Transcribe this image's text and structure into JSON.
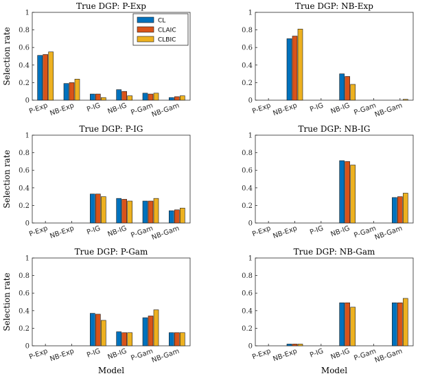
{
  "legend": [
    "CL",
    "CLAIC",
    "CLBIC"
  ],
  "colors": [
    "#0072BD",
    "#D95319",
    "#EDB120"
  ],
  "ylabel": "Selection rate",
  "xlabel": "Model",
  "categories": [
    "P-Exp",
    "NB-Exp",
    "P-IG",
    "NB-IG",
    "P-Gam",
    "NB-Gam"
  ],
  "yticks": [
    "0",
    "0.2",
    "0.4",
    "0.6",
    "0.8",
    "1"
  ],
  "chart_data": [
    {
      "type": "bar",
      "title": "True DGP: P-Exp",
      "categories": [
        "P-Exp",
        "NB-Exp",
        "P-IG",
        "NB-IG",
        "P-Gam",
        "NB-Gam"
      ],
      "ylim": [
        0,
        1
      ],
      "series": [
        {
          "name": "CL",
          "values": [
            0.51,
            0.19,
            0.07,
            0.12,
            0.08,
            0.03
          ]
        },
        {
          "name": "CLAIC",
          "values": [
            0.52,
            0.2,
            0.07,
            0.1,
            0.07,
            0.04
          ]
        },
        {
          "name": "CLBIC",
          "values": [
            0.55,
            0.24,
            0.03,
            0.05,
            0.08,
            0.05
          ]
        }
      ]
    },
    {
      "type": "bar",
      "title": "True DGP: NB-Exp",
      "categories": [
        "P-Exp",
        "NB-Exp",
        "P-IG",
        "NB-IG",
        "P-Gam",
        "NB-Gam"
      ],
      "ylim": [
        0,
        1
      ],
      "series": [
        {
          "name": "CL",
          "values": [
            0,
            0.7,
            0,
            0.3,
            0,
            0
          ]
        },
        {
          "name": "CLAIC",
          "values": [
            0,
            0.73,
            0,
            0.27,
            0,
            0
          ]
        },
        {
          "name": "CLBIC",
          "values": [
            0,
            0.81,
            0,
            0.18,
            0,
            0.01
          ]
        }
      ]
    },
    {
      "type": "bar",
      "title": "True DGP: P-IG",
      "categories": [
        "P-Exp",
        "NB-Exp",
        "P-IG",
        "NB-IG",
        "P-Gam",
        "NB-Gam"
      ],
      "ylim": [
        0,
        1
      ],
      "series": [
        {
          "name": "CL",
          "values": [
            0,
            0,
            0.33,
            0.28,
            0.25,
            0.14
          ]
        },
        {
          "name": "CLAIC",
          "values": [
            0,
            0,
            0.33,
            0.27,
            0.25,
            0.15
          ]
        },
        {
          "name": "CLBIC",
          "values": [
            0,
            0,
            0.3,
            0.25,
            0.28,
            0.17
          ]
        }
      ]
    },
    {
      "type": "bar",
      "title": "True DGP: NB-IG",
      "categories": [
        "P-Exp",
        "NB-Exp",
        "P-IG",
        "NB-IG",
        "P-Gam",
        "NB-Gam"
      ],
      "ylim": [
        0,
        1
      ],
      "series": [
        {
          "name": "CL",
          "values": [
            0,
            0,
            0,
            0.71,
            0,
            0.29
          ]
        },
        {
          "name": "CLAIC",
          "values": [
            0,
            0,
            0,
            0.7,
            0,
            0.3
          ]
        },
        {
          "name": "CLBIC",
          "values": [
            0,
            0,
            0,
            0.66,
            0,
            0.34
          ]
        }
      ]
    },
    {
      "type": "bar",
      "title": "True DGP: P-Gam",
      "categories": [
        "P-Exp",
        "NB-Exp",
        "P-IG",
        "NB-IG",
        "P-Gam",
        "NB-Gam"
      ],
      "ylim": [
        0,
        1
      ],
      "series": [
        {
          "name": "CL",
          "values": [
            0,
            0,
            0.37,
            0.16,
            0.32,
            0.15
          ]
        },
        {
          "name": "CLAIC",
          "values": [
            0,
            0,
            0.36,
            0.15,
            0.34,
            0.15
          ]
        },
        {
          "name": "CLBIC",
          "values": [
            0,
            0,
            0.29,
            0.15,
            0.41,
            0.15
          ]
        }
      ]
    },
    {
      "type": "bar",
      "title": "True DGP: NB-Gam",
      "categories": [
        "P-Exp",
        "NB-Exp",
        "P-IG",
        "NB-IG",
        "P-Gam",
        "NB-Gam"
      ],
      "ylim": [
        0,
        1
      ],
      "series": [
        {
          "name": "CL",
          "values": [
            0,
            0.02,
            0,
            0.49,
            0,
            0.49
          ]
        },
        {
          "name": "CLAIC",
          "values": [
            0,
            0.02,
            0,
            0.49,
            0,
            0.49
          ]
        },
        {
          "name": "CLBIC",
          "values": [
            0,
            0.02,
            0,
            0.44,
            0,
            0.54
          ]
        }
      ]
    }
  ]
}
